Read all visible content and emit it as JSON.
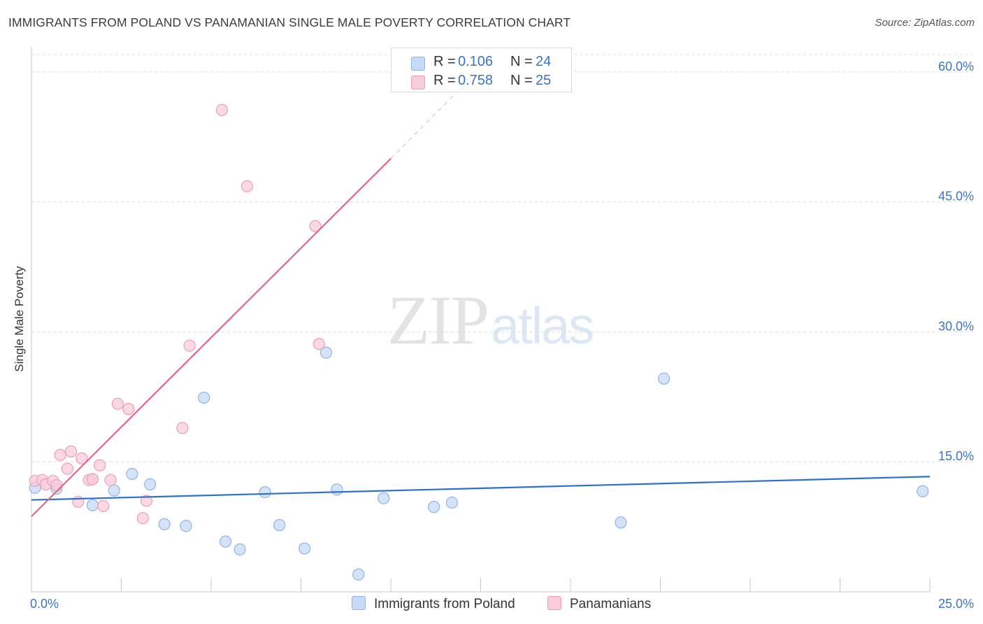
{
  "header": {
    "title": "IMMIGRANTS FROM POLAND VS PANAMANIAN SINGLE MALE POVERTY CORRELATION CHART",
    "source": "Source: ZipAtlas.com"
  },
  "watermark": {
    "zip": "ZIP",
    "atlas": "atlas"
  },
  "legend": {
    "rows": [
      {
        "r_label": "R =",
        "r_value": "0.106",
        "n_label": "N =",
        "n_value": "24"
      },
      {
        "r_label": "R =",
        "r_value": "0.758",
        "n_label": "N =",
        "n_value": "25"
      }
    ]
  },
  "colors": {
    "blue_fill": "#c6d9f6",
    "blue_stroke": "#8fb3e6",
    "blue_line": "#2e6fcf",
    "pink_fill": "#f9ccd9",
    "pink_stroke": "#ec9db5",
    "pink_line": "#e5638d",
    "value_text": "#3b73c6",
    "grid": "#dcdcdc"
  },
  "chart_data": {
    "type": "scatter",
    "title": "IMMIGRANTS FROM POLAND VS PANAMANIAN SINGLE MALE POVERTY CORRELATION CHART",
    "xlabel": "",
    "ylabel": "Single Male Poverty",
    "xlim": [
      0,
      25
    ],
    "ylim": [
      0,
      62
    ],
    "x_tick_labels": [
      "0.0%",
      "25.0%"
    ],
    "y_ticks": [
      15,
      30,
      45,
      60
    ],
    "y_tick_labels": [
      "15.0%",
      "30.0%",
      "45.0%",
      "60.0%"
    ],
    "grid": true,
    "legend_position": "bottom",
    "series": [
      {
        "name": "Immigrants from Poland",
        "color": "blue",
        "points": [
          [
            0.1,
            12.0
          ],
          [
            0.7,
            11.9
          ],
          [
            1.7,
            13.0
          ],
          [
            1.7,
            10.0
          ],
          [
            2.3,
            11.7
          ],
          [
            2.8,
            13.6
          ],
          [
            3.3,
            12.4
          ],
          [
            3.7,
            7.8
          ],
          [
            4.3,
            7.6
          ],
          [
            4.8,
            22.4
          ],
          [
            5.4,
            5.8
          ],
          [
            5.8,
            4.9
          ],
          [
            6.5,
            11.5
          ],
          [
            6.9,
            7.7
          ],
          [
            7.6,
            5.0
          ],
          [
            8.2,
            27.6
          ],
          [
            8.5,
            11.8
          ],
          [
            9.1,
            2.0
          ],
          [
            9.8,
            10.8
          ],
          [
            11.2,
            9.8
          ],
          [
            11.7,
            10.3
          ],
          [
            16.4,
            8.0
          ],
          [
            17.6,
            24.6
          ],
          [
            24.8,
            11.6
          ]
        ],
        "trend": {
          "x": [
            0,
            25
          ],
          "y": [
            10.6,
            13.3
          ]
        }
      },
      {
        "name": "Panamanians",
        "color": "pink",
        "points": [
          [
            0.1,
            12.8
          ],
          [
            0.3,
            12.9
          ],
          [
            0.4,
            12.4
          ],
          [
            0.6,
            12.8
          ],
          [
            0.7,
            12.3
          ],
          [
            0.8,
            15.8
          ],
          [
            1.0,
            14.2
          ],
          [
            1.1,
            16.2
          ],
          [
            1.3,
            10.4
          ],
          [
            1.4,
            15.4
          ],
          [
            1.6,
            12.9
          ],
          [
            1.7,
            13.0
          ],
          [
            1.9,
            14.6
          ],
          [
            2.0,
            9.9
          ],
          [
            2.2,
            12.9
          ],
          [
            2.4,
            21.7
          ],
          [
            2.7,
            21.1
          ],
          [
            3.1,
            8.5
          ],
          [
            3.2,
            10.5
          ],
          [
            4.2,
            18.9
          ],
          [
            4.4,
            28.4
          ],
          [
            5.3,
            55.6
          ],
          [
            6.0,
            46.8
          ],
          [
            7.9,
            42.2
          ],
          [
            8.0,
            28.6
          ]
        ],
        "trend": {
          "x": [
            0,
            10.0
          ],
          "y": [
            8.7,
            50.0
          ]
        },
        "trend_dashed": {
          "x": [
            10.0,
            11.8
          ],
          "y": [
            50.0,
            57.5
          ]
        }
      }
    ],
    "bottom_legend": [
      "Immigrants from Poland",
      "Panamanians"
    ]
  }
}
